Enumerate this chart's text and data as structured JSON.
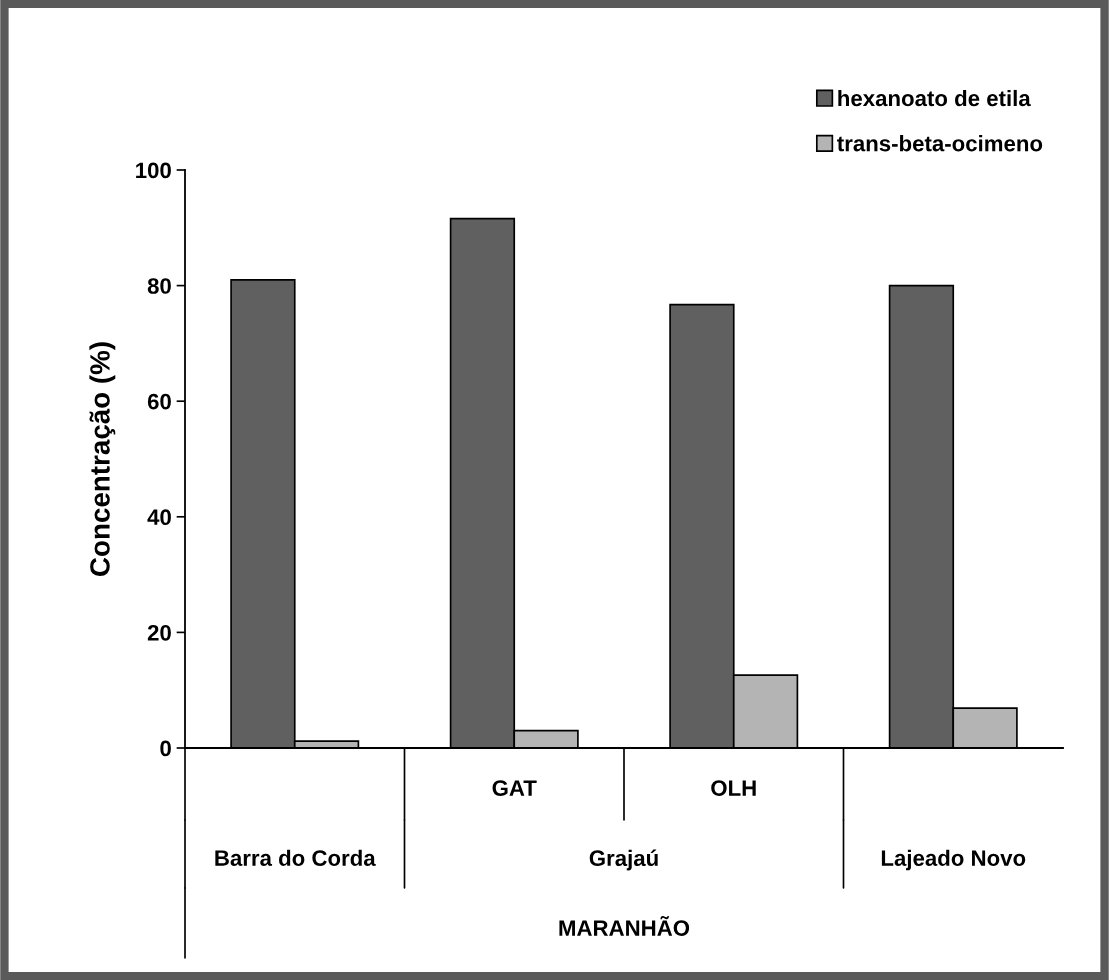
{
  "chart_data": {
    "type": "bar",
    "ylabel": "Concentração (%)",
    "categories": [
      null,
      "GAT",
      "OLH",
      null
    ],
    "series": [
      {
        "name": "hexanoato de etila",
        "color": "#606060",
        "values": [
          81.0,
          91.6,
          76.7,
          80.0
        ]
      },
      {
        "name": "trans-beta-ocimeno",
        "color": "#b4b4b4",
        "values": [
          1.2,
          3.0,
          12.6,
          6.9
        ]
      }
    ],
    "annotations": [
      "Barra do Corda",
      "Grajaú",
      "Lajeado Novo",
      "MARANHÃO"
    ],
    "ylim": [
      0,
      100
    ],
    "yticks": [
      0,
      20,
      40,
      60,
      80,
      100
    ],
    "grid": false,
    "legend": "top right"
  }
}
